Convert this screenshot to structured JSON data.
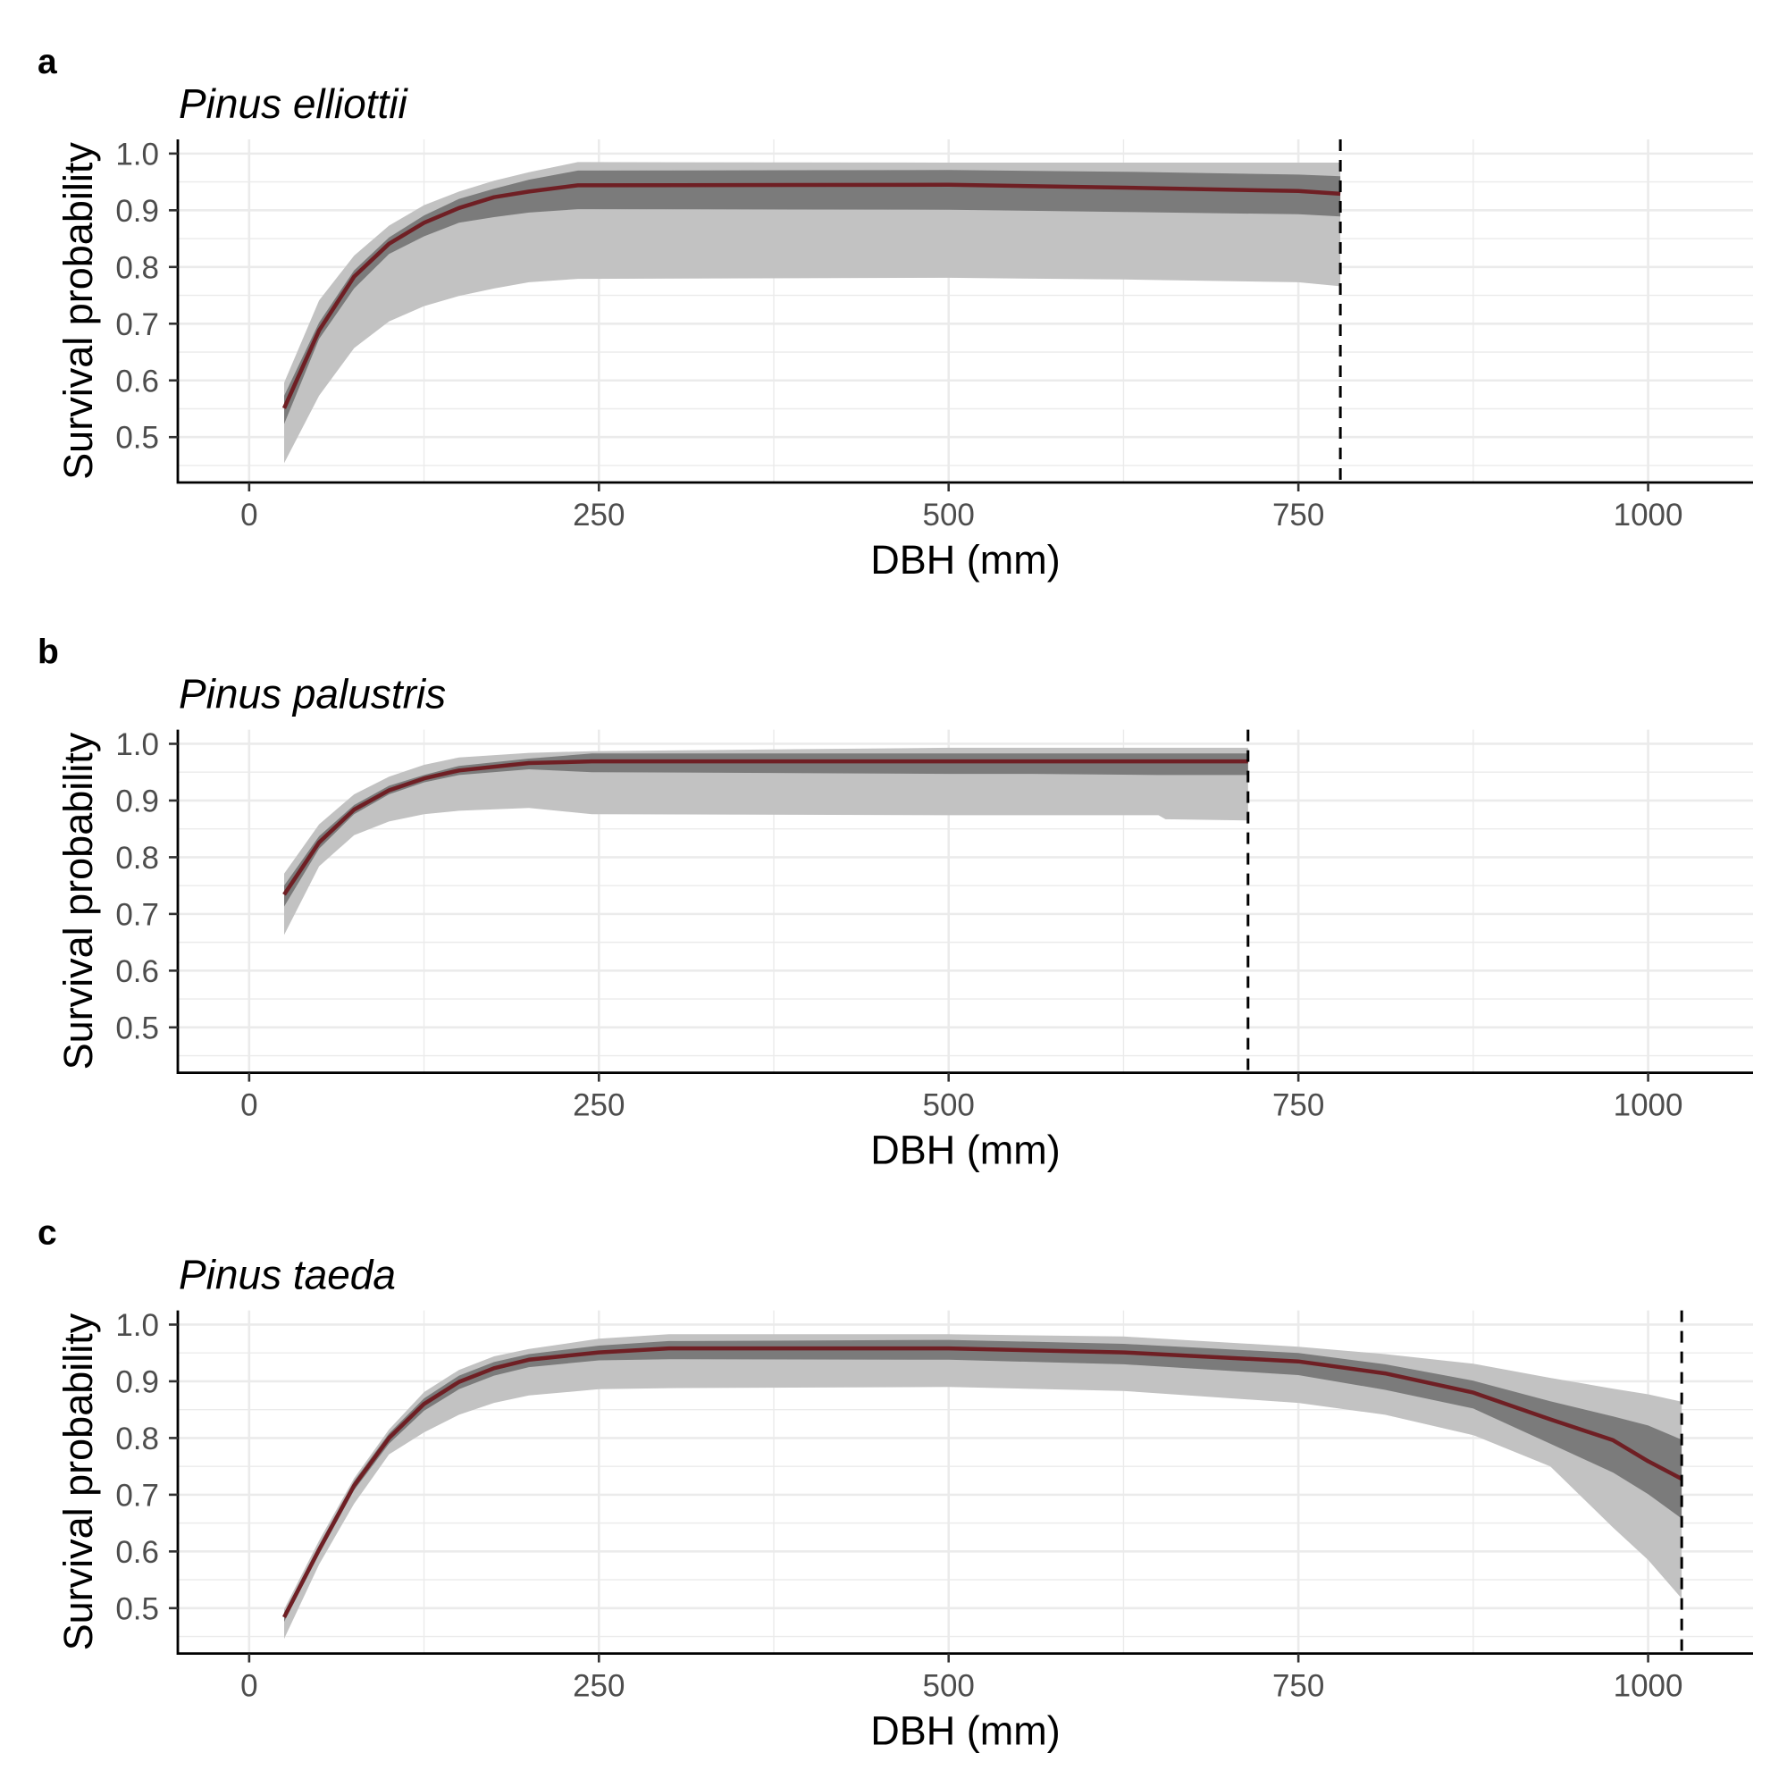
{
  "colors": {
    "fitted_line": "#6f1f24",
    "inner_band": "#7b7b7b",
    "outer_band": "#c2c2c2",
    "max_dbh_line": "#000000"
  },
  "chart_data": [
    {
      "type": "area",
      "panel_label": "a",
      "title": "Pinus elliottii",
      "xlabel": "DBH (mm)",
      "ylabel": "Survival probability",
      "xlim": [
        -51,
        1075
      ],
      "ylim": [
        0.42,
        1.025
      ],
      "grid": true,
      "x_ticks": [
        0,
        250,
        500,
        750,
        1000
      ],
      "x_tick_labels": [
        "0",
        "250",
        "500",
        "750",
        "1000"
      ],
      "y_ticks": [
        0.5,
        0.6,
        0.7,
        0.8,
        0.9,
        1.0
      ],
      "y_tick_labels": [
        "0.5",
        "0.6",
        "0.7",
        "0.8",
        "0.9",
        "1.0"
      ],
      "max_dbh": 780,
      "x": [
        25,
        50,
        75,
        100,
        125,
        150,
        175,
        200,
        235,
        500,
        625,
        750,
        780
      ],
      "series": [
        {
          "name": "fitted",
          "values": [
            0.551,
            0.688,
            0.783,
            0.841,
            0.878,
            0.904,
            0.923,
            0.933,
            0.944,
            0.945,
            0.94,
            0.934,
            0.929
          ]
        },
        {
          "name": "inner_lower",
          "values": [
            0.523,
            0.673,
            0.762,
            0.823,
            0.854,
            0.878,
            0.888,
            0.896,
            0.902,
            0.901,
            0.897,
            0.893,
            0.889
          ]
        },
        {
          "name": "inner_upper",
          "values": [
            0.573,
            0.702,
            0.794,
            0.852,
            0.891,
            0.92,
            0.938,
            0.954,
            0.97,
            0.971,
            0.968,
            0.963,
            0.96
          ]
        },
        {
          "name": "outer_lower",
          "values": [
            0.454,
            0.573,
            0.657,
            0.704,
            0.731,
            0.749,
            0.762,
            0.773,
            0.779,
            0.781,
            0.778,
            0.773,
            0.766
          ]
        },
        {
          "name": "outer_upper",
          "values": [
            0.596,
            0.741,
            0.82,
            0.873,
            0.909,
            0.933,
            0.952,
            0.967,
            0.985,
            0.984,
            0.984,
            0.984,
            0.984
          ]
        }
      ]
    },
    {
      "type": "area",
      "panel_label": "b",
      "title": "Pinus palustris",
      "xlabel": "DBH (mm)",
      "ylabel": "Survival probability",
      "xlim": [
        -51,
        1075
      ],
      "ylim": [
        0.42,
        1.025
      ],
      "grid": true,
      "x_ticks": [
        0,
        250,
        500,
        750,
        1000
      ],
      "x_tick_labels": [
        "0",
        "250",
        "500",
        "750",
        "1000"
      ],
      "y_ticks": [
        0.5,
        0.6,
        0.7,
        0.8,
        0.9,
        1.0
      ],
      "y_tick_labels": [
        "0.5",
        "0.6",
        "0.7",
        "0.8",
        "0.9",
        "1.0"
      ],
      "max_dbh": 714,
      "x": [
        25,
        50,
        75,
        100,
        125,
        150,
        200,
        245,
        500,
        560,
        650,
        655,
        714
      ],
      "series": [
        {
          "name": "fitted",
          "values": [
            0.734,
            0.826,
            0.884,
            0.918,
            0.939,
            0.953,
            0.966,
            0.969,
            0.969,
            0.969,
            0.969,
            0.969,
            0.969
          ]
        },
        {
          "name": "inner_lower",
          "values": [
            0.713,
            0.815,
            0.876,
            0.911,
            0.932,
            0.945,
            0.955,
            0.95,
            0.947,
            0.947,
            0.945,
            0.945,
            0.945
          ]
        },
        {
          "name": "inner_upper",
          "values": [
            0.75,
            0.837,
            0.892,
            0.926,
            0.945,
            0.961,
            0.974,
            0.983,
            0.983,
            0.983,
            0.983,
            0.983,
            0.983
          ]
        },
        {
          "name": "outer_lower",
          "values": [
            0.663,
            0.784,
            0.839,
            0.863,
            0.876,
            0.882,
            0.887,
            0.876,
            0.874,
            0.874,
            0.874,
            0.867,
            0.865
          ]
        },
        {
          "name": "outer_upper",
          "values": [
            0.771,
            0.858,
            0.911,
            0.942,
            0.963,
            0.976,
            0.984,
            0.987,
            0.993,
            0.993,
            0.993,
            0.993,
            0.993
          ]
        }
      ]
    },
    {
      "type": "area",
      "panel_label": "c",
      "title": "Pinus taeda",
      "xlabel": "DBH (mm)",
      "ylabel": "Survival probability",
      "xlim": [
        -51,
        1075
      ],
      "ylim": [
        0.42,
        1.025
      ],
      "grid": true,
      "x_ticks": [
        0,
        250,
        500,
        750,
        1000
      ],
      "x_tick_labels": [
        "0",
        "250",
        "500",
        "750",
        "1000"
      ],
      "y_ticks": [
        0.5,
        0.6,
        0.7,
        0.8,
        0.9,
        1.0
      ],
      "y_tick_labels": [
        "0.5",
        "0.6",
        "0.7",
        "0.8",
        "0.9",
        "1.0"
      ],
      "max_dbh": 1024,
      "x": [
        25,
        50,
        75,
        100,
        125,
        150,
        175,
        200,
        250,
        300,
        500,
        625,
        750,
        812,
        875,
        930,
        975,
        1000,
        1024
      ],
      "series": [
        {
          "name": "fitted",
          "values": [
            0.484,
            0.603,
            0.716,
            0.8,
            0.86,
            0.899,
            0.923,
            0.938,
            0.951,
            0.958,
            0.958,
            0.951,
            0.935,
            0.914,
            0.88,
            0.833,
            0.796,
            0.759,
            0.728
          ]
        },
        {
          "name": "inner_lower",
          "values": [
            0.476,
            0.595,
            0.708,
            0.79,
            0.848,
            0.886,
            0.91,
            0.925,
            0.937,
            0.939,
            0.938,
            0.93,
            0.911,
            0.885,
            0.852,
            0.79,
            0.739,
            0.701,
            0.658
          ]
        },
        {
          "name": "inner_upper",
          "values": [
            0.492,
            0.611,
            0.724,
            0.808,
            0.87,
            0.91,
            0.934,
            0.948,
            0.963,
            0.971,
            0.973,
            0.966,
            0.95,
            0.93,
            0.901,
            0.865,
            0.838,
            0.822,
            0.797
          ]
        },
        {
          "name": "outer_lower",
          "values": [
            0.446,
            0.577,
            0.684,
            0.771,
            0.81,
            0.841,
            0.862,
            0.875,
            0.886,
            0.888,
            0.89,
            0.883,
            0.862,
            0.841,
            0.805,
            0.75,
            0.642,
            0.585,
            0.517
          ]
        },
        {
          "name": "outer_upper",
          "values": [
            0.498,
            0.619,
            0.729,
            0.815,
            0.881,
            0.92,
            0.944,
            0.957,
            0.975,
            0.983,
            0.983,
            0.979,
            0.961,
            0.948,
            0.931,
            0.906,
            0.887,
            0.877,
            0.864
          ]
        }
      ]
    }
  ]
}
